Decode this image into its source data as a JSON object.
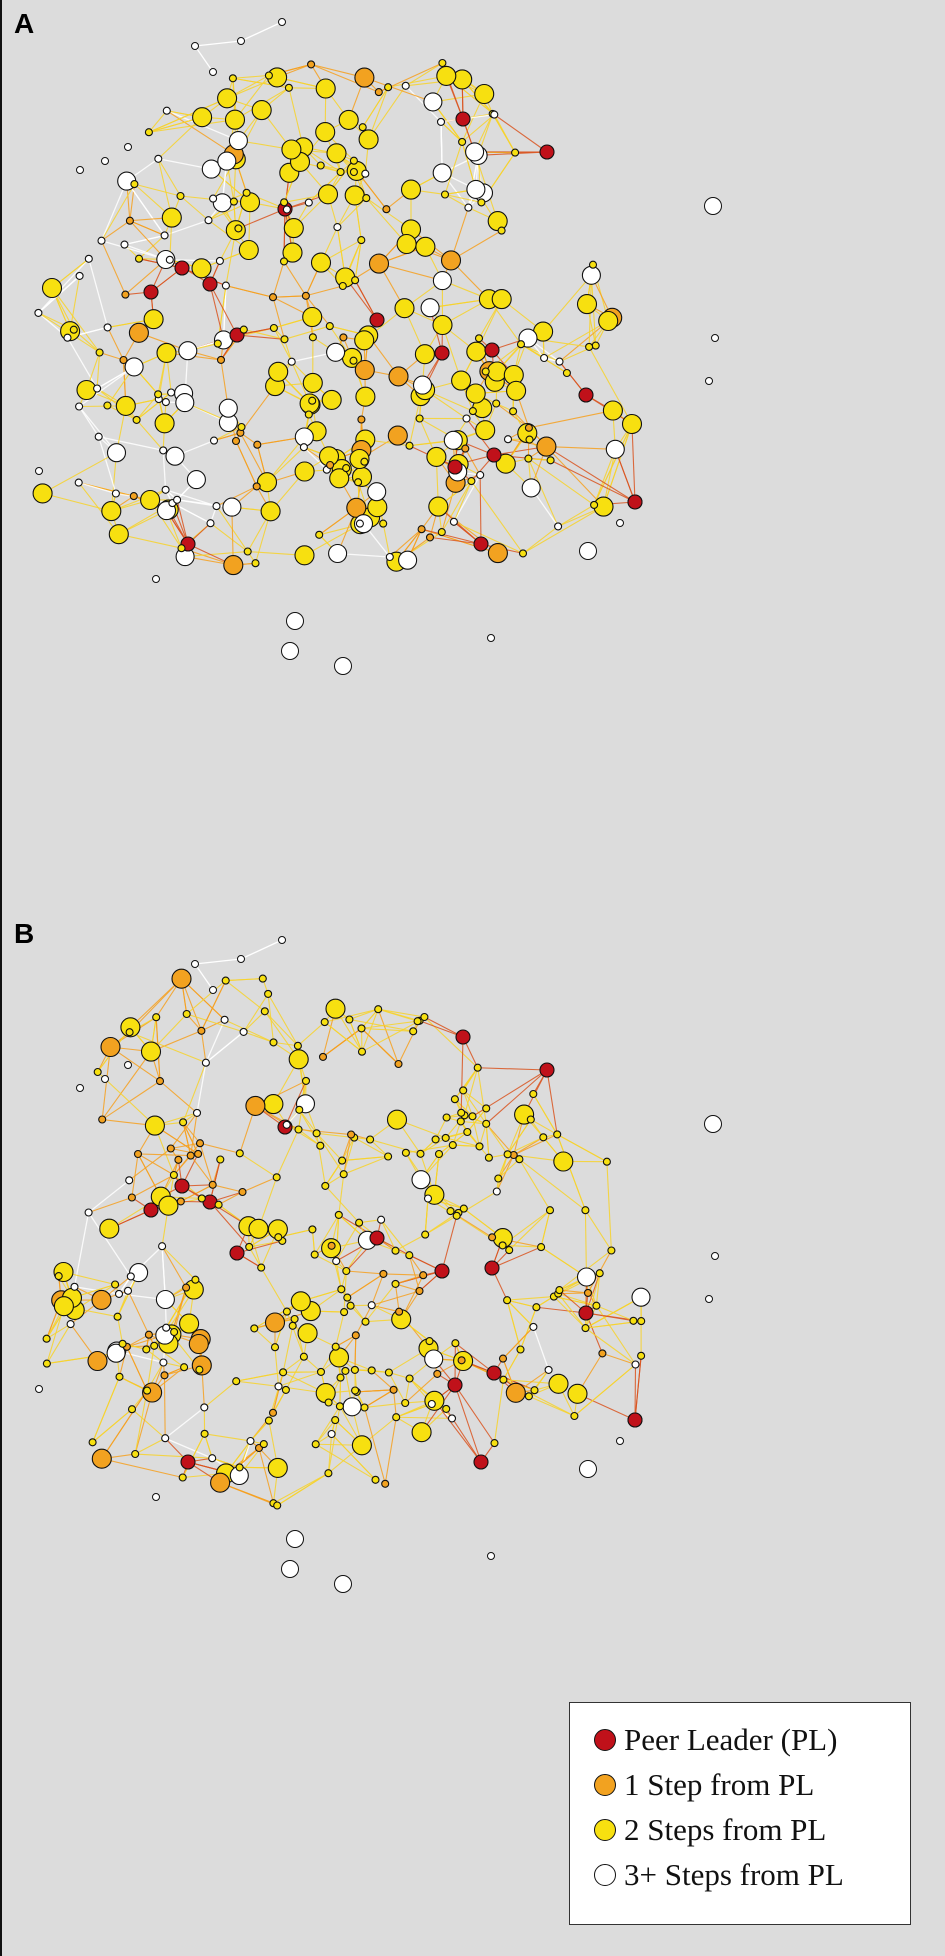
{
  "panels": [
    {
      "label": "A",
      "seed": 17,
      "white_share": 0.28,
      "big_share": 0.52
    },
    {
      "label": "B",
      "seed": 23,
      "white_share": 0.16,
      "big_share": 0.22
    }
  ],
  "legend": {
    "items": [
      {
        "label": "Peer Leader (PL)",
        "color": "#c0111a"
      },
      {
        "label": "1 Step from PL",
        "color": "#f2a220"
      },
      {
        "label": "2 Steps from PL",
        "color": "#f7e010"
      },
      {
        "label": "3+ Steps from PL",
        "color": "#ffffff"
      }
    ]
  },
  "colors": {
    "background": "#dcdcdc",
    "edge_orange": "#f6a01f",
    "edge_yellow": "#f7d22a",
    "edge_red": "#d9541e",
    "edge_white": "#ffffff",
    "node_outline": "#111111"
  }
}
